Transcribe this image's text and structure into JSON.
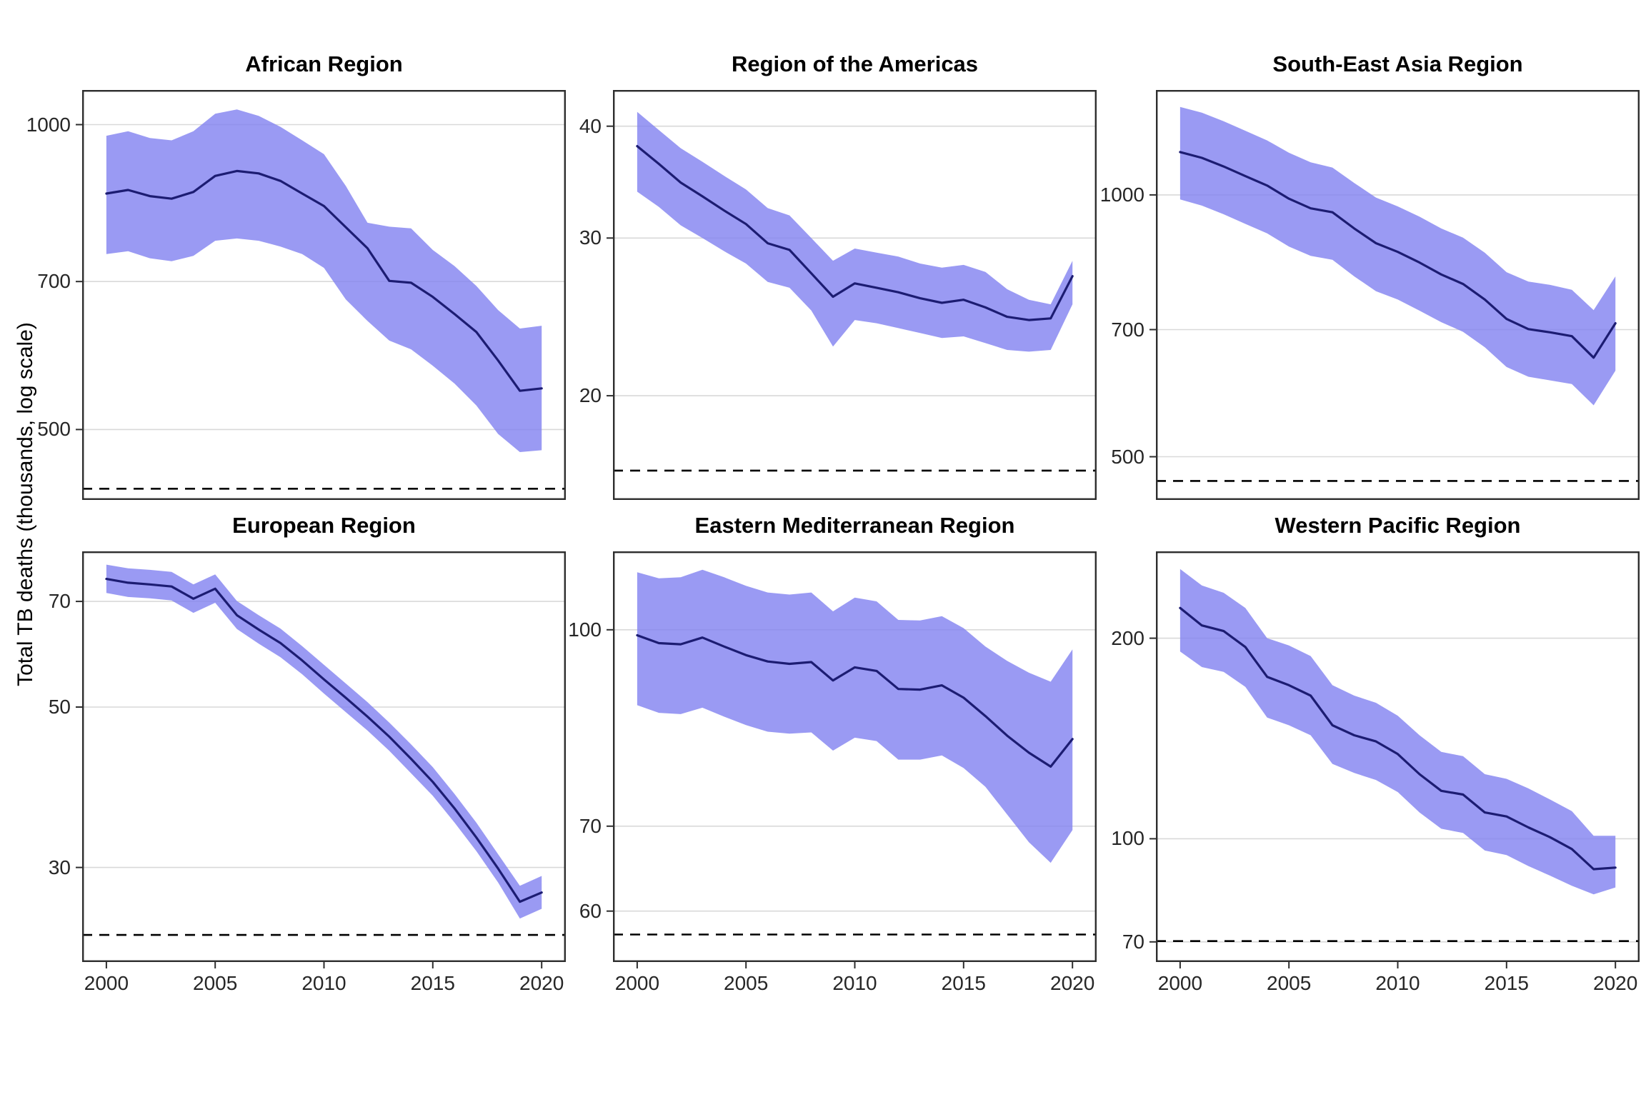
{
  "figure": {
    "y_axis_label": "Total TB deaths (thousands, log scale)",
    "colors": {
      "ribbon": "#8181f0",
      "line": "#1c1c72",
      "gridline": "#d9d9d9",
      "dashed": "#000000",
      "border": "#2e2e2e",
      "axis_text": "#262626",
      "title": "#000000",
      "background": "#ffffff"
    },
    "ribbon_opacity": 0.8
  },
  "chart_data": {
    "type": "line",
    "scale": "log10",
    "ylabel": "Total TB deaths (thousands, log scale)",
    "xlabel": "",
    "legend": "none",
    "grid": "major-horizontal-only",
    "x": [
      2000,
      2001,
      2002,
      2003,
      2004,
      2005,
      2006,
      2007,
      2008,
      2009,
      2010,
      2011,
      2012,
      2013,
      2014,
      2015,
      2016,
      2017,
      2018,
      2019,
      2020
    ],
    "x_ticks": [
      2000,
      2005,
      2010,
      2015,
      2020
    ],
    "panels": [
      {
        "title": "African Region",
        "ylim": [
          426,
          1082
        ],
        "y_gridlines": [
          500,
          700,
          1000
        ],
        "dashed_target": 437,
        "line": [
          855,
          862,
          850,
          845,
          858,
          890,
          900,
          895,
          880,
          855,
          831,
          792,
          755,
          701,
          698,
          676,
          650,
          624,
          585,
          546,
          549
        ],
        "upper": [
          975,
          985,
          970,
          965,
          985,
          1025,
          1035,
          1020,
          995,
          965,
          935,
          870,
          800,
          793,
          790,
          752,
          725,
          693,
          656,
          629,
          633
        ],
        "lower": [
          745,
          750,
          738,
          733,
          742,
          768,
          772,
          768,
          758,
          745,
          722,
          672,
          640,
          612,
          600,
          578,
          555,
          528,
          495,
          475,
          477
        ]
      },
      {
        "title": "Region of the Americas",
        "ylim": [
          15.3,
          43.9
        ],
        "y_gridlines": [
          20,
          30,
          40
        ],
        "dashed_target": 16.5,
        "line": [
          38.0,
          36.3,
          34.6,
          33.4,
          32.2,
          31.1,
          29.6,
          29.1,
          27.4,
          25.8,
          26.7,
          26.4,
          26.1,
          25.7,
          25.4,
          25.6,
          25.1,
          24.5,
          24.3,
          24.4,
          27.2
        ],
        "upper": [
          41.5,
          39.6,
          37.8,
          36.5,
          35.2,
          34.0,
          32.4,
          31.8,
          30.0,
          28.3,
          29.2,
          28.9,
          28.6,
          28.1,
          27.8,
          28.0,
          27.5,
          26.3,
          25.6,
          25.3,
          28.3
        ],
        "lower": [
          33.8,
          32.5,
          31.0,
          30.0,
          29.0,
          28.1,
          26.8,
          26.4,
          24.9,
          22.7,
          24.3,
          24.1,
          23.8,
          23.5,
          23.2,
          23.3,
          22.9,
          22.5,
          22.4,
          22.5,
          25.3
        ]
      },
      {
        "title": "South-East Asia Region",
        "ylim": [
          446,
          1320
        ],
        "y_gridlines": [
          500,
          700,
          1000
        ],
        "dashed_target": 469,
        "line": [
          1120,
          1103,
          1078,
          1051,
          1025,
          990,
          965,
          955,
          915,
          880,
          860,
          836,
          810,
          790,
          758,
          720,
          701,
          695,
          688,
          650,
          712
        ],
        "upper": [
          1262,
          1243,
          1215,
          1185,
          1155,
          1118,
          1090,
          1075,
          1032,
          993,
          970,
          944,
          915,
          893,
          858,
          815,
          795,
          788,
          778,
          737,
          806
        ],
        "lower": [
          988,
          972,
          950,
          926,
          903,
          872,
          851,
          842,
          806,
          775,
          758,
          736,
          714,
          696,
          668,
          634,
          618,
          612,
          606,
          573,
          628
        ]
      },
      {
        "title": "European Region",
        "ylim": [
          22.2,
          82.1
        ],
        "y_gridlines": [
          30,
          50,
          70
        ],
        "dashed_target": 24.2,
        "line": [
          75.2,
          74.3,
          73.9,
          73.4,
          70.6,
          72.9,
          67.0,
          64.0,
          61.3,
          58.0,
          54.6,
          51.5,
          48.5,
          45.5,
          42.4,
          39.4,
          36.2,
          33.0,
          29.9,
          26.9,
          27.7
        ],
        "upper": [
          78.7,
          77.8,
          77.4,
          76.9,
          73.9,
          76.3,
          70.1,
          67.0,
          64.2,
          60.7,
          57.2,
          53.9,
          50.8,
          47.6,
          44.4,
          41.3,
          37.9,
          34.6,
          31.3,
          28.3,
          29.2
        ],
        "lower": [
          71.9,
          71.0,
          70.7,
          70.2,
          67.5,
          69.7,
          64.1,
          61.2,
          58.6,
          55.5,
          52.2,
          49.2,
          46.4,
          43.5,
          40.5,
          37.7,
          34.6,
          31.6,
          28.6,
          25.5,
          26.3
        ]
      },
      {
        "title": "Eastern Mediterranean Region",
        "ylim": [
          54.7,
          115.3
        ],
        "y_gridlines": [
          60,
          70,
          100
        ],
        "dashed_target": 57.5,
        "line": [
          99,
          97.6,
          97.4,
          98.6,
          97,
          95.5,
          94.4,
          94,
          94.3,
          91.2,
          93.4,
          92.8,
          89.8,
          89.7,
          90.4,
          88.4,
          85.5,
          82.5,
          80,
          78,
          82
        ],
        "upper": [
          111,
          109.8,
          110,
          111.5,
          110,
          108.3,
          107,
          106.6,
          107,
          103.4,
          106,
          105.3,
          101.8,
          101.7,
          102.5,
          100.3,
          97,
          94.5,
          92.5,
          91,
          96.5
        ],
        "lower": [
          87.2,
          86,
          85.8,
          86.8,
          85.4,
          84.1,
          83.1,
          82.8,
          83,
          80.3,
          82.2,
          81.7,
          79,
          79,
          79.6,
          77.8,
          75.2,
          71.5,
          68,
          65.5,
          69.5
        ]
      },
      {
        "title": "Western Pacific Region",
        "ylim": [
          65.3,
          270
        ],
        "y_gridlines": [
          70,
          100,
          200
        ],
        "dashed_target": 70.2,
        "line": [
          222,
          209,
          205,
          194,
          175,
          170,
          164,
          148,
          143,
          140,
          134,
          125,
          118,
          116.5,
          109.5,
          108,
          104,
          100.5,
          96.5,
          90,
          90.5
        ],
        "upper": [
          254,
          240,
          234,
          222,
          200,
          195,
          188,
          170,
          164,
          160,
          153,
          143,
          135,
          133,
          125,
          123,
          119,
          114.5,
          110,
          101,
          101
        ],
        "lower": [
          191,
          181,
          178,
          169,
          152,
          148,
          143,
          129.5,
          125.5,
          122.5,
          117.5,
          109.5,
          103.5,
          102,
          96,
          94.5,
          91,
          88,
          85,
          82.5,
          84.5
        ]
      }
    ]
  }
}
